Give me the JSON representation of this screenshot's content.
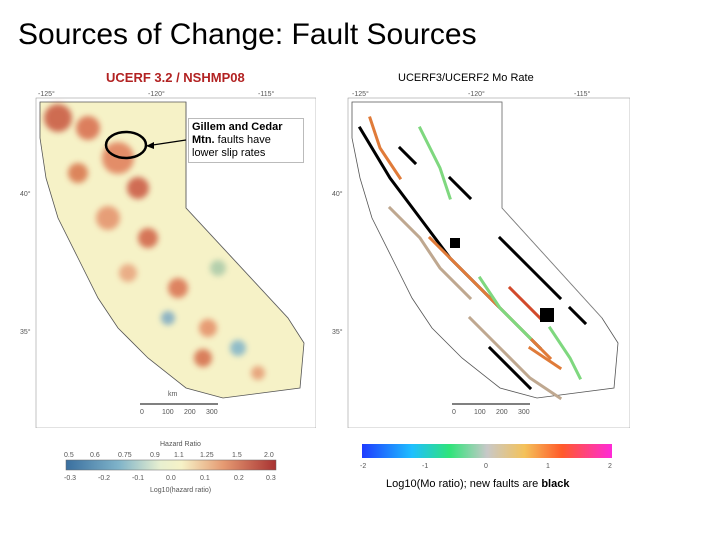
{
  "slide": {
    "title": "Sources of Change: Fault Sources"
  },
  "left_map": {
    "title": "UCERF 3.2 / NSHMP08",
    "lon_ticks": [
      "-125°",
      "-120°",
      "-115°"
    ],
    "lat_ticks": [
      "40°",
      "35°"
    ],
    "scale_label": "km",
    "scale_ticks": [
      "0",
      "100",
      "200",
      "300"
    ],
    "callout_bold": "Gillem and Cedar Mtn.",
    "callout_text": " faults have lower slip rates",
    "colorbar": {
      "title": "Hazard Ratio",
      "top_ticks": [
        "0.5",
        "0.6",
        "0.75",
        "0.9",
        "1.1",
        "1.25",
        "1.5",
        "2.0"
      ],
      "bottom_ticks": [
        "-0.3",
        "-0.2",
        "-0.1",
        "0.0",
        "0.1",
        "0.2",
        "0.3"
      ],
      "axis_label": "Log10(hazard ratio)"
    }
  },
  "right_map": {
    "title": "UCERF3/UCERF2 Mo Rate",
    "lon_ticks": [
      "-125°",
      "-120°",
      "-115°"
    ],
    "lat_ticks": [
      "40°",
      "35°"
    ],
    "scale_ticks": [
      "0",
      "100",
      "200",
      "300"
    ],
    "colorbar": {
      "ticks": [
        "-2",
        "-1",
        "0",
        "1",
        "2"
      ],
      "caption_prefix": "Log10(Mo ratio); new faults are ",
      "caption_bold": "black"
    }
  }
}
